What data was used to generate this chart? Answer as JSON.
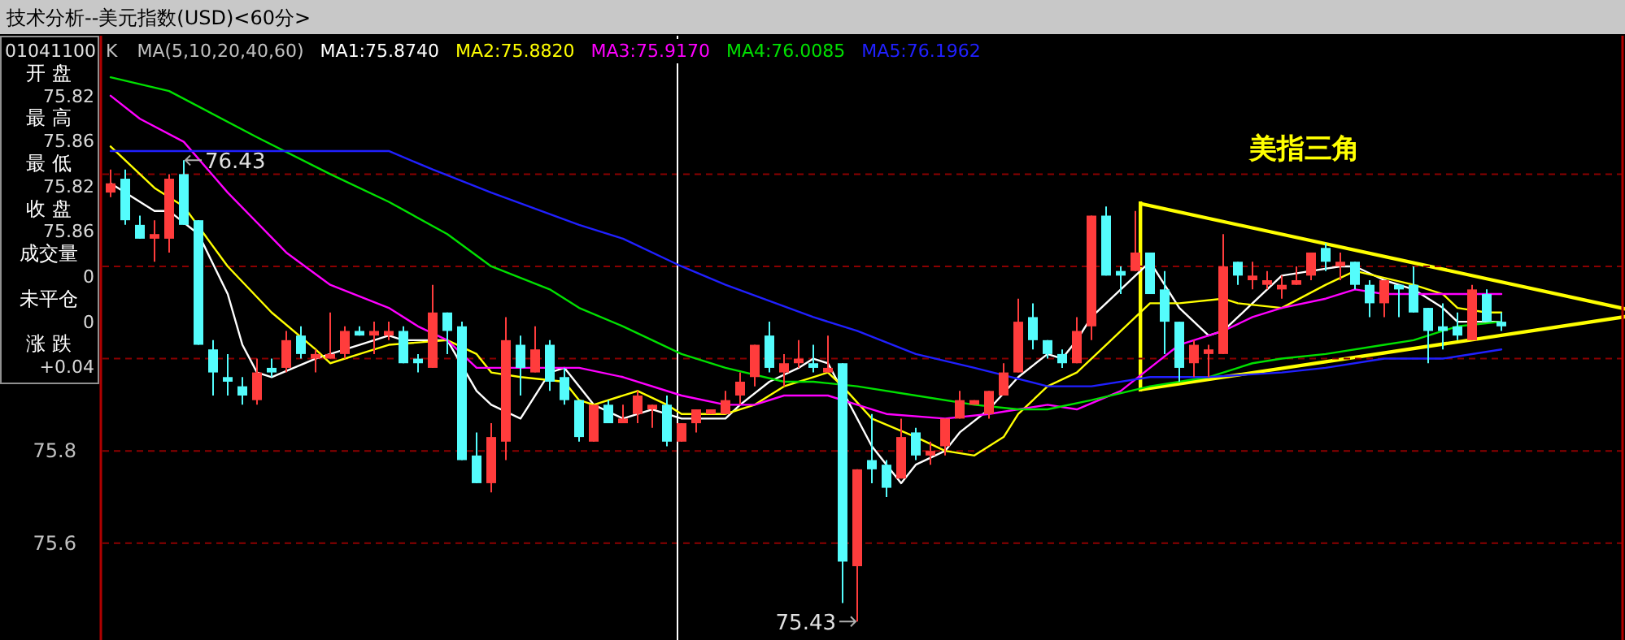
{
  "chart_data": [
    {
      "type": "candlestick",
      "title": "技术分析--美元指数(USD)<60分>",
      "categories": [
        null,
        null,
        null,
        null,
        null,
        null,
        null,
        null,
        null,
        null,
        null,
        null,
        null,
        null,
        null,
        null,
        null,
        null,
        null,
        null,
        null,
        null,
        null,
        null,
        null,
        null,
        null,
        null,
        null,
        null,
        null,
        null,
        null,
        null,
        null,
        null,
        null,
        null,
        null,
        null,
        null,
        null,
        null,
        null,
        null,
        null,
        null,
        null,
        null,
        null,
        null,
        null,
        null,
        null,
        null,
        null,
        null,
        null,
        null,
        null,
        null,
        null,
        null,
        null,
        null,
        null,
        null,
        null,
        null,
        null,
        null,
        null,
        null,
        null,
        null,
        null,
        null,
        null,
        null,
        null,
        null,
        null,
        null,
        null,
        null,
        null,
        null,
        null,
        null,
        null,
        null,
        null,
        null,
        null,
        null,
        null
      ],
      "ohlc": [
        [
          76.36,
          76.41,
          76.35,
          76.38
        ],
        [
          76.39,
          76.41,
          76.29,
          76.3
        ],
        [
          76.29,
          76.31,
          76.26,
          76.26
        ],
        [
          76.26,
          76.3,
          76.21,
          76.27
        ],
        [
          76.26,
          76.4,
          76.23,
          76.39
        ],
        [
          76.4,
          76.43,
          76.29,
          76.29
        ],
        [
          76.3,
          76.3,
          76.03,
          76.03
        ],
        [
          76.02,
          76.04,
          75.92,
          75.97
        ],
        [
          75.96,
          76.01,
          75.92,
          75.95
        ],
        [
          75.94,
          75.96,
          75.9,
          75.92
        ],
        [
          75.91,
          76.0,
          75.9,
          75.97
        ],
        [
          75.98,
          76.0,
          75.96,
          75.97
        ],
        [
          75.98,
          76.06,
          75.97,
          76.04
        ],
        [
          76.05,
          76.07,
          76.0,
          76.01
        ],
        [
          76.0,
          76.02,
          75.97,
          76.01
        ],
        [
          76.0,
          76.1,
          76.0,
          76.01
        ],
        [
          76.01,
          76.07,
          76.0,
          76.06
        ],
        [
          76.06,
          76.07,
          76.05,
          76.05
        ],
        [
          76.05,
          76.08,
          76.01,
          76.06
        ],
        [
          76.05,
          76.08,
          76.04,
          76.06
        ],
        [
          76.06,
          76.07,
          75.99,
          75.99
        ],
        [
          76.0,
          76.01,
          75.97,
          75.99
        ],
        [
          75.98,
          76.16,
          75.98,
          76.1
        ],
        [
          76.1,
          76.1,
          76.01,
          76.06
        ],
        [
          76.07,
          76.08,
          75.78,
          75.78
        ],
        [
          75.79,
          75.84,
          75.73,
          75.73
        ],
        [
          75.73,
          75.86,
          75.71,
          75.83
        ],
        [
          75.82,
          76.09,
          75.78,
          76.04
        ],
        [
          76.03,
          76.05,
          75.92,
          75.98
        ],
        [
          75.97,
          76.07,
          75.97,
          76.02
        ],
        [
          76.03,
          76.04,
          75.93,
          75.95
        ],
        [
          75.96,
          75.98,
          75.9,
          75.91
        ],
        [
          75.91,
          75.91,
          75.82,
          75.83
        ],
        [
          75.82,
          75.9,
          75.82,
          75.9
        ],
        [
          75.9,
          75.91,
          75.86,
          75.86
        ],
        [
          75.86,
          75.9,
          75.86,
          75.87
        ],
        [
          75.88,
          75.93,
          75.86,
          75.92
        ],
        [
          75.89,
          75.9,
          75.85,
          75.9
        ],
        [
          75.9,
          75.92,
          75.81,
          75.82
        ],
        [
          75.82,
          75.86,
          75.82,
          75.86
        ],
        [
          75.86,
          75.89,
          75.84,
          75.89
        ],
        [
          75.88,
          75.89,
          75.88,
          75.89
        ],
        [
          75.88,
          75.93,
          75.88,
          75.91
        ],
        [
          75.92,
          75.97,
          75.9,
          75.95
        ],
        [
          75.96,
          76.03,
          75.94,
          76.03
        ],
        [
          76.05,
          76.08,
          75.97,
          75.98
        ],
        [
          75.97,
          76.01,
          75.94,
          75.99
        ],
        [
          75.99,
          76.04,
          75.98,
          76.0
        ],
        [
          75.99,
          76.03,
          75.97,
          75.98
        ],
        [
          75.97,
          76.05,
          75.97,
          75.98
        ],
        [
          75.99,
          75.99,
          75.47,
          75.56
        ],
        [
          75.55,
          75.76,
          75.43,
          75.76
        ],
        [
          75.78,
          75.88,
          75.73,
          75.76
        ],
        [
          75.77,
          75.78,
          75.7,
          75.72
        ],
        [
          75.74,
          75.87,
          75.74,
          75.83
        ],
        [
          75.84,
          75.85,
          75.78,
          75.79
        ],
        [
          75.79,
          75.82,
          75.77,
          75.8
        ],
        [
          75.81,
          75.87,
          75.79,
          75.87
        ],
        [
          75.87,
          75.93,
          75.87,
          75.91
        ],
        [
          75.9,
          75.91,
          75.9,
          75.91
        ],
        [
          75.88,
          75.93,
          75.87,
          75.93
        ],
        [
          75.92,
          75.99,
          75.92,
          75.97
        ],
        [
          75.97,
          76.13,
          75.97,
          76.08
        ],
        [
          76.09,
          76.12,
          76.02,
          76.04
        ],
        [
          76.04,
          76.04,
          76.0,
          76.01
        ],
        [
          76.01,
          76.02,
          75.98,
          75.99
        ],
        [
          75.99,
          76.09,
          75.99,
          76.06
        ],
        [
          76.07,
          76.31,
          76.04,
          76.31
        ],
        [
          76.31,
          76.33,
          76.18,
          76.18
        ],
        [
          76.19,
          76.2,
          76.14,
          76.18
        ],
        [
          76.19,
          76.32,
          76.19,
          76.23
        ],
        [
          76.23,
          76.23,
          76.14,
          76.14
        ],
        [
          76.15,
          76.19,
          76.01,
          76.08
        ],
        [
          76.08,
          76.08,
          75.95,
          75.98
        ],
        [
          75.99,
          76.04,
          75.96,
          76.03
        ],
        [
          76.01,
          76.03,
          75.96,
          76.02
        ],
        [
          76.01,
          76.27,
          76.01,
          76.2
        ],
        [
          76.21,
          76.21,
          76.16,
          76.18
        ],
        [
          76.17,
          76.21,
          76.15,
          76.18
        ],
        [
          76.16,
          76.19,
          76.15,
          76.17
        ],
        [
          76.15,
          76.18,
          76.13,
          76.16
        ],
        [
          76.16,
          76.2,
          76.16,
          76.17
        ],
        [
          76.18,
          76.23,
          76.17,
          76.23
        ],
        [
          76.24,
          76.25,
          76.19,
          76.21
        ],
        [
          76.2,
          76.23,
          76.17,
          76.21
        ],
        [
          76.21,
          76.21,
          76.15,
          76.16
        ],
        [
          76.16,
          76.17,
          76.09,
          76.12
        ],
        [
          76.12,
          76.17,
          76.09,
          76.17
        ],
        [
          76.16,
          76.16,
          76.09,
          76.15
        ],
        [
          76.16,
          76.2,
          76.1,
          76.1
        ],
        [
          76.11,
          76.11,
          75.99,
          76.06
        ],
        [
          76.07,
          76.12,
          76.02,
          76.06
        ],
        [
          76.07,
          76.1,
          76.04,
          76.05
        ],
        [
          76.04,
          76.16,
          76.04,
          76.15
        ],
        [
          76.14,
          76.15,
          76.08,
          76.08
        ],
        [
          76.08,
          76.1,
          76.06,
          76.07
        ]
      ],
      "series": [
        {
          "name": "MA1:75.8740",
          "color": "#ffffff",
          "type": "line",
          "values": [
            76.38,
            null,
            null,
            76.32,
            76.32,
            null,
            76.27,
            null,
            76.14,
            76.03,
            75.97,
            75.96,
            null,
            null,
            76.0,
            76.01,
            null,
            76.03,
            null,
            76.05,
            76.04,
            null,
            null,
            76.04,
            null,
            75.93,
            75.9,
            null,
            75.87,
            null,
            75.97,
            75.98,
            null,
            75.9,
            null,
            75.87,
            null,
            75.89,
            null,
            75.87,
            null,
            null,
            75.87,
            75.9,
            null,
            75.95,
            null,
            75.98,
            76.0,
            75.99,
            null,
            null,
            75.81,
            null,
            75.73,
            75.77,
            null,
            75.8,
            75.84,
            null,
            75.89,
            null,
            75.96,
            null,
            76.01,
            76.0,
            76.04,
            76.09,
            null,
            76.15,
            null,
            76.21,
            null,
            76.11,
            null,
            76.05,
            76.06,
            null,
            76.12,
            null,
            76.18,
            null,
            76.19,
            null,
            76.2,
            76.2,
            null,
            76.17,
            null,
            76.15,
            null,
            76.11,
            76.08,
            null,
            76.08,
            76.08
          ]
        },
        {
          "name": "MA2:75.8820",
          "color": "#ffff00",
          "type": "line",
          "values": [
            76.46,
            null,
            null,
            76.37,
            null,
            76.33,
            null,
            null,
            76.2,
            null,
            null,
            76.1,
            null,
            null,
            76.02,
            75.99,
            null,
            76.01,
            null,
            76.03,
            null,
            null,
            null,
            76.04,
            null,
            76.01,
            75.97,
            null,
            75.96,
            null,
            null,
            75.95,
            75.91,
            75.9,
            null,
            null,
            75.93,
            null,
            75.9,
            75.88,
            null,
            null,
            75.88,
            null,
            75.9,
            null,
            75.94,
            null,
            75.96,
            75.97,
            75.94,
            null,
            75.87,
            null,
            null,
            75.83,
            null,
            75.8,
            null,
            75.79,
            null,
            75.83,
            75.88,
            null,
            75.94,
            null,
            75.97,
            null,
            76.03,
            null,
            null,
            76.12,
            null,
            76.12,
            null,
            null,
            76.13,
            76.12,
            null,
            null,
            76.11,
            null,
            null,
            76.16,
            null,
            76.19,
            null,
            null,
            null,
            76.16,
            null,
            76.14,
            76.11,
            null,
            76.1,
            76.1
          ]
        },
        {
          "name": "MA3:75.9170",
          "color": "#ff00ff",
          "type": "line",
          "values": [
            76.57,
            null,
            76.52,
            null,
            null,
            76.47,
            null,
            null,
            76.36,
            null,
            null,
            null,
            76.23,
            null,
            null,
            76.16,
            null,
            null,
            null,
            76.11,
            null,
            76.07,
            null,
            76.04,
            null,
            75.98,
            null,
            null,
            75.98,
            null,
            null,
            null,
            75.98,
            null,
            null,
            75.96,
            null,
            null,
            null,
            75.92,
            null,
            null,
            75.9,
            null,
            75.9,
            null,
            75.92,
            null,
            75.92,
            75.92,
            null,
            75.9,
            null,
            75.88,
            null,
            null,
            null,
            75.87,
            null,
            null,
            75.88,
            null,
            75.89,
            null,
            75.9,
            null,
            75.89,
            null,
            null,
            75.93,
            null,
            75.98,
            null,
            76.03,
            null,
            null,
            76.06,
            null,
            76.09,
            null,
            76.11,
            null,
            null,
            76.13,
            null,
            76.15,
            null,
            76.14,
            null,
            null,
            null,
            76.14,
            null,
            null,
            null,
            76.14
          ]
        },
        {
          "name": "MA4:76.0085",
          "color": "#00e000",
          "type": "line",
          "values": [
            76.61,
            null,
            null,
            null,
            76.58,
            null,
            null,
            null,
            null,
            null,
            76.48,
            null,
            null,
            null,
            null,
            76.4,
            null,
            null,
            null,
            76.34,
            null,
            null,
            null,
            76.27,
            null,
            null,
            76.2,
            null,
            null,
            null,
            76.15,
            null,
            76.11,
            null,
            null,
            76.07,
            null,
            null,
            null,
            76.01,
            null,
            null,
            75.98,
            null,
            null,
            null,
            75.95,
            null,
            75.95,
            null,
            null,
            75.94,
            null,
            null,
            null,
            75.92,
            null,
            null,
            null,
            75.9,
            null,
            null,
            75.89,
            null,
            75.89,
            null,
            null,
            75.91,
            null,
            null,
            null,
            75.94,
            null,
            null,
            null,
            75.96,
            null,
            null,
            75.99,
            null,
            76.0,
            null,
            null,
            76.01,
            null,
            null,
            null,
            76.03,
            null,
            76.04,
            null,
            76.06,
            76.07,
            null,
            null,
            76.08
          ]
        },
        {
          "name": "MA5:76.1962",
          "color": "#2020ff",
          "type": "line",
          "values": [
            76.45,
            null,
            null,
            null,
            null,
            null,
            null,
            null,
            null,
            null,
            76.45,
            null,
            null,
            null,
            null,
            null,
            null,
            null,
            null,
            76.45,
            null,
            null,
            76.41,
            null,
            null,
            null,
            76.36,
            null,
            null,
            null,
            null,
            null,
            76.29,
            null,
            null,
            76.26,
            null,
            null,
            null,
            76.2,
            null,
            null,
            76.16,
            null,
            null,
            null,
            null,
            null,
            76.09,
            null,
            null,
            76.06,
            null,
            null,
            null,
            76.01,
            null,
            null,
            null,
            75.98,
            null,
            null,
            null,
            null,
            75.94,
            null,
            null,
            75.94,
            null,
            null,
            null,
            75.96,
            null,
            null,
            null,
            75.96,
            null,
            null,
            null,
            null,
            75.97,
            null,
            null,
            75.98,
            null,
            null,
            null,
            76.0,
            null,
            null,
            null,
            76.0,
            null,
            null,
            null,
            76.02
          ]
        }
      ],
      "legend_title": "MA(5,10,20,40,60)",
      "ylim": [
        75.39,
        76.7
      ],
      "yticks": [
        75.6,
        75.8,
        {
          "value": 76.0,
          "label": null
        },
        {
          "value": 76.2,
          "label": null
        },
        {
          "value": 76.4,
          "label": null
        }
      ],
      "grid": "y",
      "tick_labels": "y",
      "annotations": [
        "K",
        "76.43",
        "75.43",
        "美指三角"
      ]
    },
    {
      "type": "other",
      "title": "01041100",
      "annotations": [
        "开 盘",
        "75.82",
        "最 高",
        "75.86",
        "最 低",
        "75.82",
        "收 盘",
        "75.86",
        "成交量",
        "0",
        "未平仓",
        "0",
        "涨 跌",
        "+0.04"
      ]
    }
  ]
}
